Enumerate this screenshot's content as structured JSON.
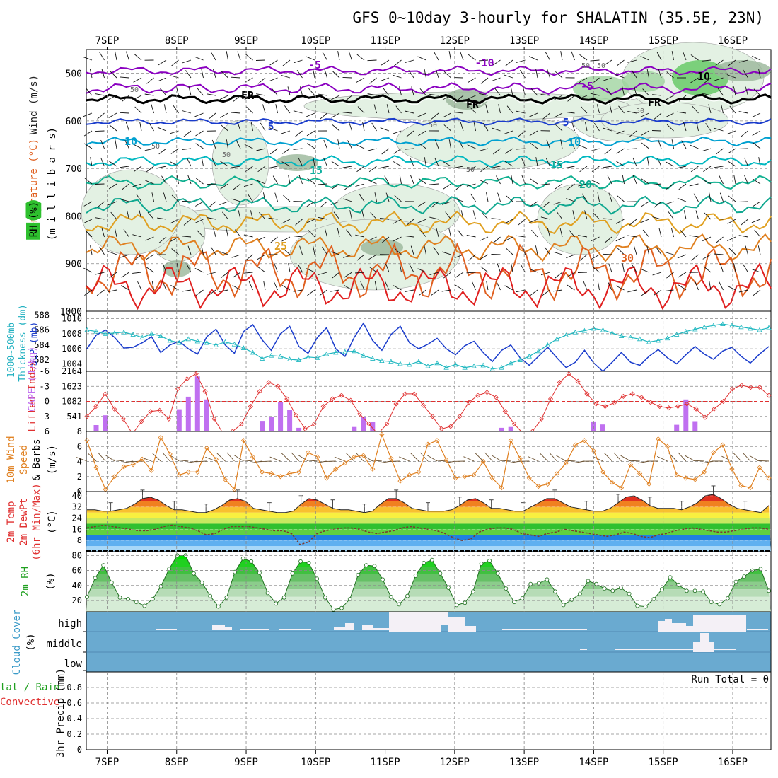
{
  "title": "GFS 0~10day 3-hourly for SHALATIN (35.5E, 23N)",
  "dates": [
    "7SEP",
    "8SEP",
    "9SEP",
    "10SEP",
    "11SEP",
    "12SEP",
    "13SEP",
    "14SEP",
    "15SEP",
    "16SEP"
  ],
  "colors": {
    "rh_green": "#2e8b2e",
    "wind_purple": "#8a00c0",
    "temp_blue": "#1a3ccc",
    "temp_cyan": "#00a0d0",
    "temp_teal": "#10b0a0",
    "temp_orange": "#e08020",
    "temp_red": "#e02020",
    "slp": "#1a3ccc",
    "thickness": "#20b8c0",
    "lifted": "#e03030",
    "cape": "#c070f0",
    "wind10": "#e08020",
    "cloud": "#6aaad0",
    "cloud_white": "#f4f0f6"
  },
  "labels": {
    "upper_axis": [
      "Wind (m/s)",
      "Temperature (°C)",
      "RH (%)",
      "(m i l l i b a r s)"
    ],
    "slp_axis": [
      "1000~500mb",
      "Thickness (dm)",
      "SLP (mb)"
    ],
    "cape_axis": [
      "Lifted Index",
      "CAPE (J/kg)"
    ],
    "wind_axis": [
      "10m Wind",
      "Speed",
      "& Barbs",
      "(m/s)"
    ],
    "temp_axis": [
      "2m Temp",
      "2m DewPt",
      "(6hr Min/Max)",
      "(°C)"
    ],
    "rh_axis": [
      "2m RH",
      "(%)"
    ],
    "cloud_axis": [
      "Cloud Cover",
      "(%)"
    ],
    "precip_axis": [
      "tal / Rain",
      "Convective",
      "3hr Precip (mm)"
    ],
    "run_total": "Run Total = 0"
  },
  "chart_data": [
    {
      "panel": "upper_air",
      "type": "heatmap",
      "yaxis": "Pressure (millibars)",
      "ylim": [
        1000,
        450
      ],
      "yticks": [
        500,
        600,
        700,
        800,
        900,
        1000
      ],
      "contour_labels": [
        "-10",
        "-5",
        "-5",
        "FR",
        "FR",
        "FR",
        "5",
        "5",
        "10",
        "10",
        "15",
        "15",
        "20",
        "25",
        "30",
        "30",
        "30",
        "50",
        "50",
        "50",
        "50",
        "50",
        "50",
        "10"
      ]
    },
    {
      "panel": "slp_thickness",
      "type": "line",
      "ylabel_left": "1000~500mb Thickness (dm)",
      "ylabel_right": "SLP (mb)",
      "yticks_left": [
        582,
        584,
        586,
        588
      ],
      "yticks_right": [
        1004,
        1006,
        1008,
        1010
      ],
      "ylim_right": [
        1003,
        1011
      ],
      "series": [
        {
          "name": "SLP (mb)",
          "values": [
            1006.0,
            1007.8,
            1008.5,
            1007.5,
            1006.1,
            1006.2,
            1006.8,
            1007.6,
            1005.5,
            1006.5,
            1007.0,
            1006.0,
            1005.3,
            1007.6,
            1008.6,
            1006.5,
            1005.4,
            1008.3,
            1009.2,
            1007.2,
            1005.8,
            1008.0,
            1009.0,
            1006.3,
            1005.4,
            1007.5,
            1008.8,
            1006.0,
            1005.0,
            1007.5,
            1009.4,
            1007.1,
            1005.8,
            1007.9,
            1009.0,
            1006.8,
            1006.0,
            1006.6,
            1007.4,
            1006.0,
            1005.2,
            1006.4,
            1007.0,
            1005.5,
            1004.3,
            1005.8,
            1006.5,
            1004.8,
            1003.8,
            1005.0,
            1006.2,
            1004.8,
            1003.5,
            1004.2,
            1005.8,
            1004.1,
            1003.0,
            1004.2,
            1005.5,
            1004.2,
            1003.8,
            1005.0,
            1005.9,
            1004.8,
            1004.0,
            1005.2,
            1006.3,
            1005.3,
            1004.6,
            1005.7,
            1006.2,
            1005.0,
            1004.1,
            1005.3,
            1006.3
          ]
        },
        {
          "name": "Thickness (dm)",
          "values": [
            586.0,
            585.8,
            585.5,
            585.6,
            585.7,
            585.4,
            585.0,
            585.5,
            585.2,
            584.6,
            584.3,
            584.8,
            584.5,
            584.3,
            584.0,
            584.4,
            584.1,
            583.6,
            583.0,
            582.2,
            582.6,
            582.5,
            582.1,
            582.0,
            582.4,
            582.3,
            582.8,
            583.0,
            583.1,
            583.2,
            582.6,
            582.2,
            581.9,
            581.8,
            581.5,
            581.4,
            581.8,
            581.2,
            581.6,
            581.0,
            581.4,
            581.0,
            581.2,
            581.3,
            580.8,
            581.0,
            581.6,
            582.0,
            582.5,
            583.2,
            584.0,
            584.8,
            585.3,
            585.7,
            585.9,
            586.2,
            586.0,
            585.6,
            585.2,
            585.0,
            584.8,
            584.4,
            584.6,
            584.9,
            585.4,
            585.8,
            586.1,
            586.4,
            586.6,
            586.8,
            586.6,
            586.4,
            586.2,
            586.0,
            586.3
          ]
        }
      ]
    },
    {
      "panel": "cape_lifted_index",
      "type": "bar",
      "ylabel_left": "Lifted Index",
      "ylabel_right": "CAPE (J/kg)",
      "yticks_left": [
        -6,
        -3,
        0,
        3,
        6
      ],
      "yticks_right": [
        541,
        1082,
        1623,
        2164
      ],
      "ylim_right": [
        0,
        2164
      ],
      "series": [
        {
          "name": "CAPE (J/kg)",
          "values": [
            0,
            230,
            580,
            0,
            0,
            0,
            0,
            0,
            0,
            0,
            800,
            1250,
            1980,
            1150,
            0,
            0,
            0,
            0,
            0,
            380,
            520,
            1050,
            780,
            130,
            0,
            0,
            0,
            0,
            0,
            160,
            530,
            340,
            0,
            0,
            0,
            0,
            0,
            0,
            0,
            0,
            0,
            0,
            0,
            0,
            0,
            130,
            160,
            0,
            0,
            0,
            0,
            0,
            0,
            0,
            0,
            360,
            250,
            0,
            0,
            0,
            0,
            0,
            0,
            0,
            240,
            1150,
            370,
            0,
            0,
            0,
            0,
            0,
            0,
            0,
            0
          ]
        },
        {
          "name": "Lifted Index",
          "values": [
            3.0,
            1.0,
            -1.5,
            1.5,
            3.5,
            6.5,
            4.0,
            2.0,
            1.8,
            3.5,
            -2.5,
            -4.5,
            -5.5,
            -2.0,
            3.5,
            6.5,
            6.0,
            4.5,
            1.0,
            -2.0,
            -3.8,
            -3.0,
            -0.5,
            2.8,
            5.5,
            4.5,
            1.0,
            -0.5,
            -1.2,
            -0.2,
            2.5,
            4.5,
            6.5,
            4.5,
            0.5,
            -1.5,
            -1.5,
            0.8,
            3.0,
            5.5,
            5.0,
            3.0,
            0.2,
            -1.2,
            -1.8,
            -0.8,
            2.0,
            4.5,
            6.5,
            6.0,
            3.5,
            -0.5,
            -3.8,
            -5.5,
            -4.0,
            -1.5,
            0.5,
            1.0,
            0.3,
            -1.0,
            -1.5,
            -0.8,
            0.2,
            1.0,
            1.3,
            1.0,
            0.5,
            1.5,
            3.2,
            1.5,
            0.0,
            -2.5,
            -3.2,
            -2.8,
            -2.8,
            -1.2
          ]
        }
      ]
    },
    {
      "panel": "wind_10m",
      "type": "line",
      "ylabel": "10m Wind Speed & Barbs (m/s)",
      "yticks": [
        0,
        2,
        4,
        6,
        8
      ],
      "ylim": [
        0,
        8
      ],
      "series": [
        {
          "name": "10m Wind Speed (m/s)",
          "values": [
            6.8,
            3.2,
            0.3,
            2.0,
            3.3,
            3.6,
            4.3,
            2.8,
            7.2,
            5.0,
            2.2,
            2.6,
            2.6,
            5.8,
            4.3,
            1.6,
            0.3,
            6.8,
            4.6,
            2.6,
            2.4,
            2.0,
            2.4,
            2.6,
            5.2,
            4.6,
            1.8,
            3.0,
            3.8,
            4.6,
            4.8,
            3.0,
            7.6,
            4.4,
            1.4,
            2.2,
            2.6,
            6.3,
            6.8,
            4.2,
            1.8,
            2.0,
            2.2,
            4.0,
            1.8,
            0.5,
            6.8,
            4.4,
            1.8,
            0.7,
            1.0,
            2.4,
            3.8,
            6.2,
            6.8,
            5.4,
            2.6,
            1.2,
            0.5,
            3.6,
            2.4,
            1.0,
            7.0,
            6.0,
            2.2,
            1.8,
            1.6,
            2.6,
            5.2,
            6.2,
            3.0,
            0.8,
            0.5,
            3.2,
            1.8
          ]
        }
      ]
    },
    {
      "panel": "temp_dewpoint",
      "type": "area",
      "ylabel": "2m Temp / 2m DewPt (6hr Min/Max) (°C)",
      "yticks": [
        8,
        16,
        24,
        32,
        40
      ],
      "ylim": [
        0,
        43
      ],
      "series": [
        {
          "name": "2m Temp (°C)",
          "values": [
            30,
            30,
            29,
            29,
            30,
            31,
            34,
            38,
            39,
            37,
            33,
            30,
            30,
            29,
            28,
            28,
            30,
            33,
            37,
            38,
            36,
            31,
            30,
            29,
            28,
            28,
            29,
            34,
            38,
            37,
            34,
            31,
            30,
            30,
            29,
            28,
            29,
            34,
            38,
            38,
            35,
            31,
            30,
            29,
            29,
            29,
            30,
            33,
            37,
            38,
            35,
            31,
            31,
            30,
            29,
            29,
            32,
            35,
            38,
            38,
            35,
            32,
            31,
            30,
            29,
            29,
            31,
            35,
            39,
            40,
            37,
            33,
            31,
            31,
            31,
            30,
            32,
            35,
            40,
            41,
            38,
            34,
            31,
            30,
            29,
            28,
            33
          ]
        },
        {
          "name": "2m DewPt (°C)",
          "values": [
            17,
            18,
            19,
            18,
            17,
            16,
            15,
            15,
            16,
            18,
            19,
            18,
            17,
            15,
            12,
            13,
            16,
            18,
            18,
            18,
            17,
            16,
            15,
            15,
            13,
            5,
            7,
            13,
            15,
            16,
            17,
            17,
            16,
            14,
            13,
            14,
            15,
            17,
            18,
            17,
            16,
            15,
            13,
            10,
            8,
            9,
            14,
            16,
            17,
            17,
            16,
            13,
            12,
            11,
            13,
            14,
            16,
            15,
            14,
            13,
            12,
            11,
            12,
            14,
            13,
            11,
            10,
            12,
            13,
            15,
            16,
            17,
            16,
            15,
            14,
            14,
            15,
            16,
            17,
            17,
            16
          ]
        }
      ]
    },
    {
      "panel": "rh_2m",
      "type": "area",
      "ylabel": "2m RH (%)",
      "yticks": [
        20,
        40,
        60,
        80
      ],
      "ylim": [
        5,
        85
      ],
      "series": [
        {
          "name": "2m RH (%)",
          "values": [
            25,
            50,
            67,
            44,
            24,
            22,
            18,
            13,
            22,
            39,
            62,
            80,
            80,
            56,
            44,
            26,
            12,
            24,
            58,
            76,
            72,
            57,
            30,
            16,
            24,
            56,
            72,
            70,
            49,
            24,
            8,
            10,
            22,
            54,
            67,
            66,
            48,
            25,
            15,
            26,
            53,
            70,
            74,
            56,
            37,
            14,
            17,
            32,
            69,
            73,
            56,
            36,
            18,
            23,
            42,
            43,
            48,
            32,
            14,
            21,
            29,
            46,
            42,
            36,
            33,
            37,
            29,
            13,
            12,
            22,
            35,
            51,
            41,
            33,
            33,
            32,
            18,
            15,
            23,
            45,
            52,
            60,
            62,
            33
          ]
        }
      ]
    },
    {
      "panel": "cloud_cover",
      "type": "area",
      "ylabel": "Cloud Cover (%)",
      "categories": [
        "high",
        "middle",
        "low"
      ]
    },
    {
      "panel": "precip_3hr",
      "type": "bar",
      "ylabel": "3hr Precip (mm)",
      "yticks": [
        0,
        0.2,
        0.4,
        0.6,
        0.8
      ],
      "ylim": [
        0,
        1.0
      ],
      "series": [
        {
          "name": "Total / Rain",
          "values": [
            0,
            0,
            0,
            0,
            0,
            0,
            0,
            0,
            0,
            0,
            0,
            0,
            0,
            0,
            0,
            0,
            0,
            0,
            0,
            0,
            0,
            0,
            0,
            0,
            0,
            0,
            0,
            0,
            0,
            0,
            0,
            0,
            0,
            0,
            0,
            0,
            0,
            0,
            0,
            0,
            0,
            0,
            0,
            0,
            0,
            0,
            0,
            0,
            0,
            0,
            0,
            0,
            0,
            0,
            0,
            0,
            0,
            0,
            0,
            0,
            0,
            0,
            0,
            0,
            0,
            0,
            0,
            0,
            0,
            0,
            0,
            0,
            0,
            0,
            0,
            0,
            0,
            0,
            0
          ]
        }
      ]
    }
  ]
}
